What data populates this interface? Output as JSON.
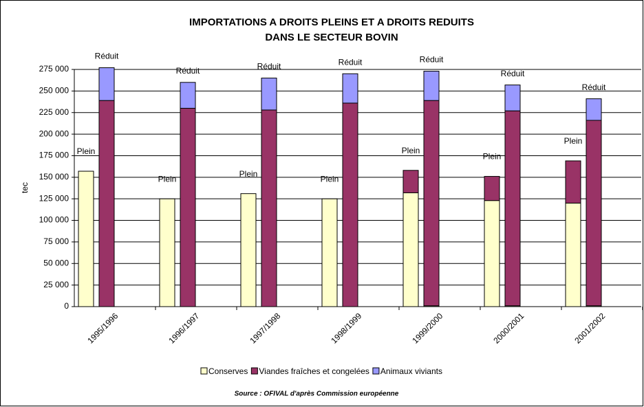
{
  "chart_data": {
    "type": "bar",
    "title": [
      "IMPORTATIONS A DROITS PLEINS ET A DROITS REDUITS",
      "DANS LE SECTEUR BOVIN"
    ],
    "y_label": "tec",
    "source": "Source : OFIVAL d'après Commission européenne",
    "categories": [
      "1995/1996",
      "1996/1997",
      "1997/1998",
      "1998/1999",
      "1999/2000",
      "2000/2001",
      "2001/2002"
    ],
    "plein_labels": [
      "Plein",
      "Plein",
      "Plein",
      "Plein",
      "Plein",
      "Plein",
      "Plein"
    ],
    "reduit_labels": [
      "Réduit",
      "Réduit",
      "Réduit",
      "Réduit",
      "Réduit",
      "Réduit",
      "Réduit"
    ],
    "series": [
      {
        "name": "Conserves",
        "color": "#ffffcc",
        "plein": [
          157000,
          125000,
          131000,
          125000,
          132000,
          123000,
          120000
        ],
        "reduit": [
          0,
          0,
          0,
          0,
          1000,
          1000,
          1000
        ]
      },
      {
        "name": "Viandes fraîches et congelées",
        "color": "#993366",
        "plein": [
          0,
          0,
          0,
          0,
          26000,
          28000,
          49000
        ],
        "reduit": [
          239000,
          230000,
          228000,
          236000,
          238000,
          226000,
          215000
        ]
      },
      {
        "name": "Animaux viviants",
        "color": "#9999ff",
        "plein": [
          0,
          0,
          0,
          0,
          0,
          0,
          0
        ],
        "reduit": [
          38000,
          30000,
          37000,
          34000,
          34000,
          30000,
          25000
        ]
      }
    ],
    "ylim": [
      0,
      275000
    ],
    "yticks": [
      {
        "value": 0,
        "label": "0"
      },
      {
        "value": 25000,
        "label": "25 000"
      },
      {
        "value": 50000,
        "label": "50 000"
      },
      {
        "value": 75000,
        "label": "75 000"
      },
      {
        "value": 100000,
        "label": "100 000"
      },
      {
        "value": 125000,
        "label": "125 000"
      },
      {
        "value": 150000,
        "label": "150 000"
      },
      {
        "value": 175000,
        "label": "175 000"
      },
      {
        "value": 200000,
        "label": "200 000"
      },
      {
        "value": 225000,
        "label": "225 000"
      },
      {
        "value": 250000,
        "label": "250 000"
      },
      {
        "value": 275000,
        "label": "275 000"
      }
    ],
    "grid": true
  }
}
